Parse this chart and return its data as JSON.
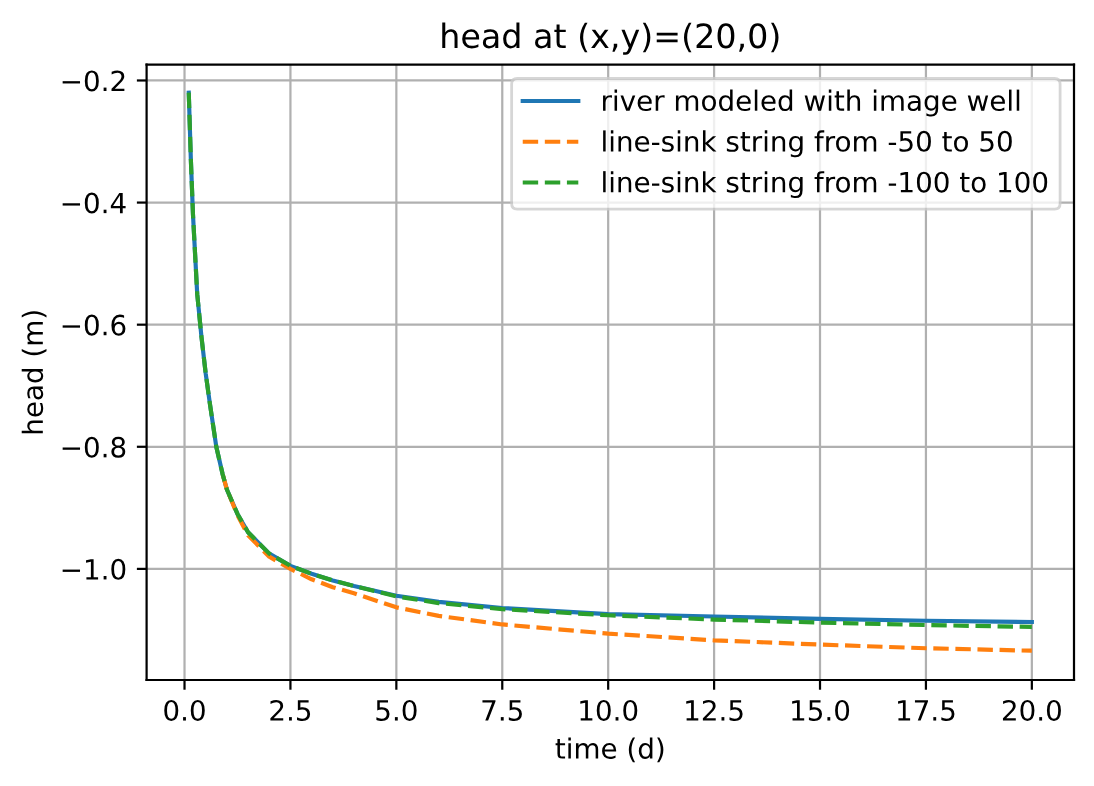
{
  "chart_data": {
    "type": "line",
    "title": "head at (x,y)=(20,0)",
    "xlabel": "time (d)",
    "ylabel": "head (m)",
    "x": [
      0.1,
      0.15,
      0.2,
      0.3,
      0.4,
      0.5,
      0.6,
      0.75,
      0.9,
      1.0,
      1.25,
      1.5,
      2,
      2.5,
      3,
      3.5,
      4,
      5,
      6,
      7.5,
      10,
      12.5,
      15,
      17.5,
      20
    ],
    "series": [
      {
        "name": "river modeled with image well",
        "color": "#1f77b4",
        "line_style": "solid",
        "values": [
          -0.22,
          -0.33,
          -0.42,
          -0.55,
          -0.62,
          -0.68,
          -0.73,
          -0.8,
          -0.845,
          -0.87,
          -0.91,
          -0.94,
          -0.975,
          -0.995,
          -1.008,
          -1.019,
          -1.028,
          -1.044,
          -1.054,
          -1.064,
          -1.074,
          -1.078,
          -1.082,
          -1.085,
          -1.087
        ]
      },
      {
        "name": "line-sink string from -50 to 50",
        "color": "#ff7f0e",
        "line_style": "dashed",
        "values": [
          null,
          null,
          null,
          null,
          null,
          null,
          null,
          null,
          -0.845,
          -0.87,
          -0.912,
          -0.945,
          -0.98,
          -1.0,
          -1.017,
          -1.03,
          -1.04,
          -1.063,
          -1.077,
          -1.091,
          -1.106,
          -1.117,
          -1.124,
          -1.13,
          -1.134
        ]
      },
      {
        "name": "line-sink string from -100 to 100",
        "color": "#2ca02c",
        "line_style": "dashed",
        "values": [
          -0.22,
          -0.33,
          -0.42,
          -0.55,
          -0.62,
          -0.68,
          -0.73,
          -0.8,
          -0.845,
          -0.87,
          -0.91,
          -0.94,
          -0.975,
          -0.995,
          -1.008,
          -1.019,
          -1.028,
          -1.045,
          -1.056,
          -1.066,
          -1.076,
          -1.083,
          -1.088,
          -1.092,
          -1.095
        ]
      }
    ],
    "xlim": [
      -0.895,
      20.995
    ],
    "ylim": [
      -1.182,
      -0.174
    ],
    "xticks": [
      {
        "value": 0,
        "label": "0.0"
      },
      {
        "value": 2.5,
        "label": "2.5"
      },
      {
        "value": 5,
        "label": "5.0"
      },
      {
        "value": 7.5,
        "label": "7.5"
      },
      {
        "value": 10,
        "label": "10.0"
      },
      {
        "value": 12.5,
        "label": "12.5"
      },
      {
        "value": 15,
        "label": "15.0"
      },
      {
        "value": 17.5,
        "label": "17.5"
      },
      {
        "value": 20,
        "label": "20.0"
      }
    ],
    "yticks": [
      {
        "value": -1.0,
        "label": "−1.0"
      },
      {
        "value": -0.8,
        "label": "−0.8"
      },
      {
        "value": -0.6,
        "label": "−0.6"
      },
      {
        "value": -0.4,
        "label": "−0.4"
      },
      {
        "value": -0.2,
        "label": "−0.2"
      }
    ],
    "grid": true,
    "legend": "top right"
  }
}
